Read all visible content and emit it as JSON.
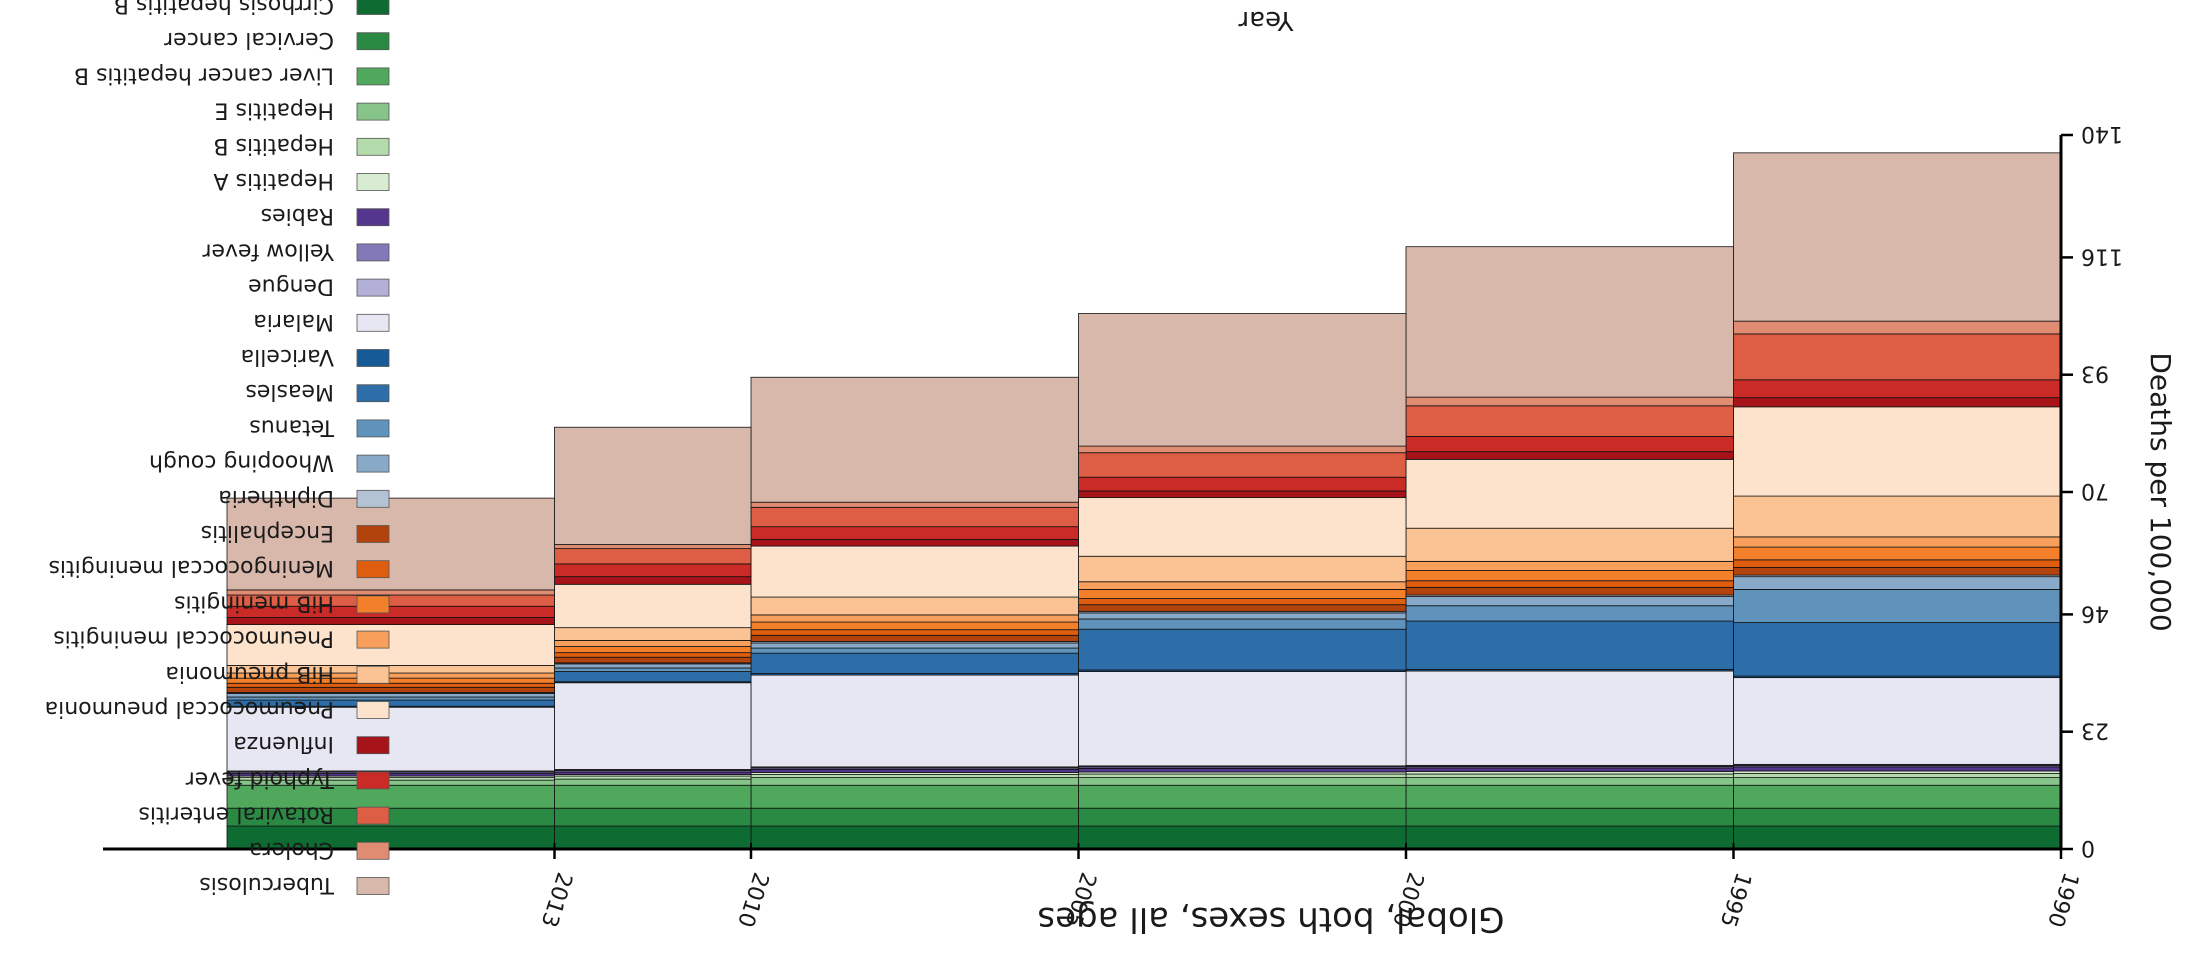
{
  "chart_data": {
    "type": "area",
    "orientation": "rotated-180",
    "title": "Global, both sexes, all ages",
    "xlabel": "Year",
    "ylabel": "Deaths per 100,000",
    "x_ticks": [
      "1990",
      "1995",
      "2000",
      "2005",
      "2010",
      "2013"
    ],
    "x_range": [
      1990,
      2018
    ],
    "y_ticks": [
      "0",
      "23",
      "46",
      "70",
      "93",
      "116",
      "140"
    ],
    "ylim": [
      0,
      140
    ],
    "legend_position": "left",
    "stack_order_from_baseline": [
      "Cirrhosis hepatitis B",
      "Cervical cancer",
      "Liver cancer hepatitis B",
      "Hepatitis E",
      "Hepatitis B",
      "Hepatitis A",
      "Rabies",
      "Yellow fever",
      "Dengue",
      "Malaria",
      "Varicella",
      "Measles",
      "Tetanus",
      "Whooping cough",
      "Diphtheria",
      "Encephalitis",
      "Meningococcal meningitis",
      "HiB meningitis",
      "Pneumococcal meningitis",
      "HiB pneumonia",
      "Pneumococcal pneumonia",
      "Influenza",
      "Typhoid fever",
      "Rotaviral enteritis",
      "Cholera",
      "Tuberculosis"
    ],
    "series": [
      {
        "name": "Cirrhosis hepatitis B",
        "color": "#0e6b31",
        "values": [
          4.5,
          4.5,
          4.5,
          4.5,
          4.5,
          4.5
        ]
      },
      {
        "name": "Cervical cancer",
        "color": "#2a8a43",
        "values": [
          3.5,
          3.5,
          3.5,
          3.5,
          3.5,
          3.5
        ]
      },
      {
        "name": "Liver cancer hepatitis B",
        "color": "#4fa85b",
        "values": [
          4.5,
          4.5,
          4.5,
          4.5,
          4.5,
          4.5
        ]
      },
      {
        "name": "Hepatitis E",
        "color": "#86c489",
        "values": [
          1.5,
          1.5,
          1.5,
          1.5,
          1.2,
          1.0
        ]
      },
      {
        "name": "Hepatitis B",
        "color": "#b3dbab",
        "values": [
          0.8,
          0.7,
          0.7,
          0.6,
          0.6,
          0.5
        ]
      },
      {
        "name": "Hepatitis A",
        "color": "#d8ebd3",
        "values": [
          0.5,
          0.5,
          0.4,
          0.4,
          0.3,
          0.3
        ]
      },
      {
        "name": "Rabies",
        "color": "#54368f",
        "values": [
          0.8,
          0.7,
          0.7,
          0.6,
          0.5,
          0.5
        ]
      },
      {
        "name": "Yellow fever",
        "color": "#8379b8",
        "values": [
          0.3,
          0.3,
          0.3,
          0.3,
          0.3,
          0.3
        ]
      },
      {
        "name": "Dengue",
        "color": "#b2b0d7",
        "values": [
          0.2,
          0.2,
          0.2,
          0.2,
          0.2,
          0.2
        ]
      },
      {
        "name": "Malaria",
        "color": "#e7e6f3",
        "values": [
          17.0,
          18.5,
          18.5,
          18.0,
          17.0,
          12.5
        ]
      },
      {
        "name": "Varicella",
        "color": "#165a97",
        "values": [
          0.3,
          0.3,
          0.3,
          0.3,
          0.2,
          0.2
        ]
      },
      {
        "name": "Measles",
        "color": "#2d6ea8",
        "values": [
          10.5,
          9.5,
          8.0,
          4.0,
          2.0,
          1.2
        ]
      },
      {
        "name": "Tetanus",
        "color": "#5f93bc",
        "values": [
          6.5,
          3.0,
          2.0,
          1.0,
          0.7,
          0.6
        ]
      },
      {
        "name": "Whooping cough",
        "color": "#88a9c7",
        "values": [
          2.5,
          1.8,
          1.2,
          1.0,
          0.8,
          0.7
        ]
      },
      {
        "name": "Diphtheria",
        "color": "#b4c3d3",
        "values": [
          0.3,
          0.3,
          0.3,
          0.3,
          0.2,
          0.2
        ]
      },
      {
        "name": "Encephalitis",
        "color": "#b3430c",
        "values": [
          1.5,
          1.5,
          1.3,
          1.2,
          1.1,
          1.0
        ]
      },
      {
        "name": "Meningococcal meningitis",
        "color": "#df5d0f",
        "values": [
          1.5,
          1.3,
          1.2,
          1.1,
          0.9,
          0.8
        ]
      },
      {
        "name": "HiB meningitis",
        "color": "#f37f2a",
        "values": [
          2.5,
          2.0,
          1.8,
          1.5,
          1.2,
          1.0
        ]
      },
      {
        "name": "Pneumococcal meningitis",
        "color": "#f8a05b",
        "values": [
          2.0,
          1.8,
          1.5,
          1.4,
          1.2,
          1.0
        ]
      },
      {
        "name": "HiB pneumonia",
        "color": "#fbc394",
        "values": [
          8.0,
          6.5,
          5.0,
          3.5,
          2.5,
          1.5
        ]
      },
      {
        "name": "Pneumococcal pneumonia",
        "color": "#fde3cb",
        "values": [
          17.5,
          13.5,
          11.5,
          10.0,
          8.5,
          8.0
        ]
      },
      {
        "name": "Influenza",
        "color": "#a61319",
        "values": [
          1.8,
          1.5,
          1.3,
          1.3,
          1.5,
          1.4
        ]
      },
      {
        "name": "Typhoid fever",
        "color": "#cb2b27",
        "values": [
          3.5,
          3.0,
          2.7,
          2.5,
          2.5,
          2.2
        ]
      },
      {
        "name": "Rotaviral enteritis",
        "color": "#dd5d45",
        "values": [
          9.0,
          6.0,
          4.8,
          3.8,
          3.0,
          2.2
        ]
      },
      {
        "name": "Cholera",
        "color": "#e08c73",
        "values": [
          2.5,
          1.7,
          1.3,
          1.0,
          0.8,
          1.0
        ]
      },
      {
        "name": "Tuberculosis",
        "color": "#d8b8ab",
        "values": [
          33.0,
          29.5,
          26.0,
          24.5,
          23.0,
          18.0
        ]
      }
    ]
  }
}
